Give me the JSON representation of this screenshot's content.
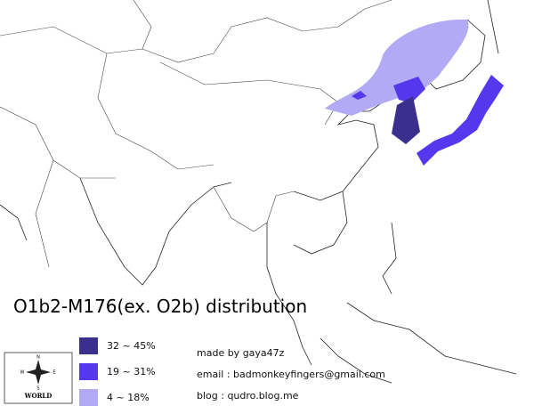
{
  "title": "O1b2-M176(ex. O2b) distribution",
  "legend": [
    {
      "label": "32 ~ 45%",
      "color": "#3b2f8e"
    },
    {
      "label": "19 ~ 31%",
      "color": "#5538ee"
    },
    {
      "label": "4 ~ 18%",
      "color": "#b3aaf5"
    }
  ],
  "credits": [
    "made by gaya47z",
    "email : badmonkeyfingers@gmail.com",
    "blog : qudro.blog.me"
  ],
  "compass": {
    "label": "WORLD",
    "directions": [
      "N",
      "S",
      "W",
      "E"
    ]
  }
}
